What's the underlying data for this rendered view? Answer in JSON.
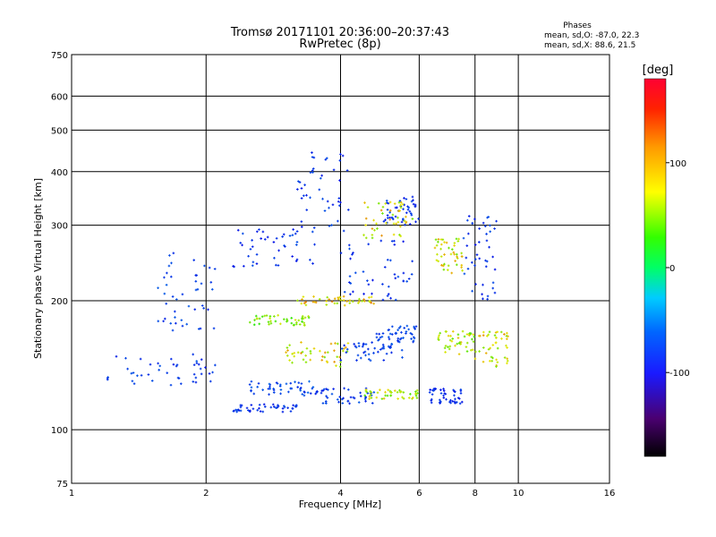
{
  "chart_data": {
    "type": "scatter",
    "title": "Tromsø 20171101 20:36:00–20:37:43",
    "subtitle": "RwPretec (8p)",
    "xlabel": "Frequency [MHz]",
    "ylabel": "Stationary phase Virtual Height [km]",
    "x_scale": "log",
    "y_scale": "log",
    "xlim": [
      1,
      16
    ],
    "ylim": [
      75,
      750
    ],
    "x_ticks": [
      1,
      2,
      4,
      6,
      8,
      10,
      16
    ],
    "y_ticks": [
      75,
      100,
      200,
      300,
      400,
      500,
      600,
      750
    ],
    "grid": true,
    "phase_header": "Phases",
    "stats": [
      "mean, sd,O: -87.0, 22.3",
      "mean, sd,X:  88.6, 21.5"
    ],
    "colorbar": {
      "label": "[deg]",
      "range": [
        -180,
        180
      ],
      "ticks": [
        100,
        0,
        -100
      ]
    },
    "series": [
      {
        "values_note": "phase deg",
        "clusters": [
          {
            "x": [
              1.2,
              2.1
            ],
            "y": [
              125,
              150
            ],
            "phase": -95
          },
          {
            "x": [
              1.5,
              2.1
            ],
            "y": [
              170,
              260
            ],
            "phase": -90
          },
          {
            "x": [
              2.3,
              3.2
            ],
            "y": [
              110,
              115
            ],
            "phase": -100
          },
          {
            "x": [
              2.5,
              3.5
            ],
            "y": [
              120,
              130
            ],
            "phase": -80
          },
          {
            "x": [
              2.5,
              3.4
            ],
            "y": [
              175,
              185
            ],
            "phase": 80
          },
          {
            "x": [
              2.3,
              3.6
            ],
            "y": [
              240,
              300
            ],
            "phase": -100
          },
          {
            "x": [
              3.0,
              4.2
            ],
            "y": [
              140,
              160
            ],
            "phase": 110
          },
          {
            "x": [
              3.2,
              4.8
            ],
            "y": [
              195,
              205
            ],
            "phase": 120
          },
          {
            "x": [
              3.2,
              4.2
            ],
            "y": [
              290,
              450
            ],
            "phase": -100
          },
          {
            "x": [
              3.5,
              4.8
            ],
            "y": [
              115,
              125
            ],
            "phase": -95
          },
          {
            "x": [
              4.0,
              5.5
            ],
            "y": [
              145,
              160
            ],
            "phase": -90
          },
          {
            "x": [
              4.0,
              5.8
            ],
            "y": [
              200,
              280
            ],
            "phase": -100
          },
          {
            "x": [
              4.5,
              6.0
            ],
            "y": [
              118,
              124
            ],
            "phase": 100
          },
          {
            "x": [
              4.8,
              6.0
            ],
            "y": [
              160,
              175
            ],
            "phase": -85
          },
          {
            "x": [
              5.0,
              6.0
            ],
            "y": [
              300,
              350
            ],
            "phase": -100
          },
          {
            "x": [
              4.5,
              5.8
            ],
            "y": [
              280,
              340
            ],
            "phase": 110
          },
          {
            "x": [
              6.3,
              7.5
            ],
            "y": [
              115,
              125
            ],
            "phase": -110
          },
          {
            "x": [
              6.5,
              7.5
            ],
            "y": [
              230,
              280
            ],
            "phase": 105
          },
          {
            "x": [
              6.5,
              8.0
            ],
            "y": [
              150,
              170
            ],
            "phase": 100
          },
          {
            "x": [
              7.5,
              9.0
            ],
            "y": [
              200,
              320
            ],
            "phase": -100
          },
          {
            "x": [
              8.0,
              9.5
            ],
            "y": [
              140,
              170
            ],
            "phase": 110
          }
        ]
      }
    ]
  }
}
